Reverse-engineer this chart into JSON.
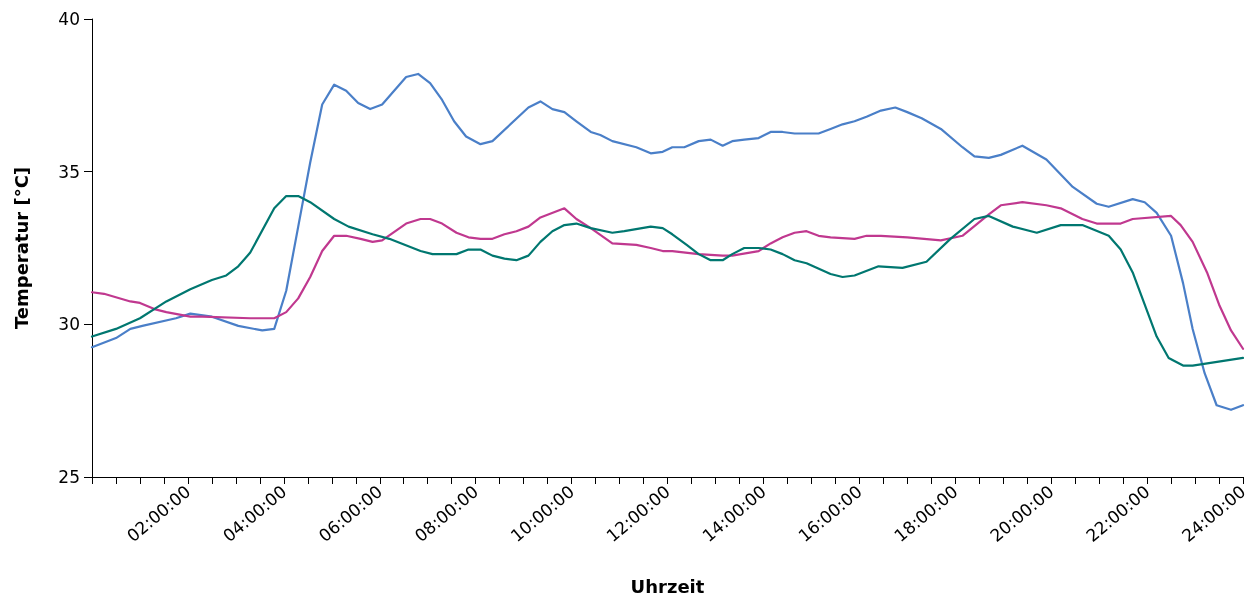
{
  "chart_data": {
    "type": "line",
    "xlabel": "Uhrzeit",
    "ylabel": "Temperatur [°C]",
    "xlim": [
      0,
      24
    ],
    "ylim": [
      25,
      40
    ],
    "yticks": [
      25,
      30,
      35,
      40
    ],
    "xticks": [
      {
        "value": 0,
        "label": null
      },
      {
        "value": 0.5,
        "label": null
      },
      {
        "value": 1,
        "label": null
      },
      {
        "value": 1.5,
        "label": null
      },
      {
        "value": 2,
        "label": "02:00:00"
      },
      {
        "value": 2.5,
        "label": null
      },
      {
        "value": 3,
        "label": null
      },
      {
        "value": 3.5,
        "label": null
      },
      {
        "value": 4,
        "label": "04:00:00"
      },
      {
        "value": 4.5,
        "label": null
      },
      {
        "value": 5,
        "label": null
      },
      {
        "value": 5.5,
        "label": null
      },
      {
        "value": 6,
        "label": "06:00:00"
      },
      {
        "value": 6.5,
        "label": null
      },
      {
        "value": 7,
        "label": null
      },
      {
        "value": 7.5,
        "label": null
      },
      {
        "value": 8,
        "label": "08:00:00"
      },
      {
        "value": 8.5,
        "label": null
      },
      {
        "value": 9,
        "label": null
      },
      {
        "value": 9.5,
        "label": null
      },
      {
        "value": 10,
        "label": "10:00:00"
      },
      {
        "value": 10.5,
        "label": null
      },
      {
        "value": 11,
        "label": null
      },
      {
        "value": 11.5,
        "label": null
      },
      {
        "value": 12,
        "label": "12:00:00"
      },
      {
        "value": 12.5,
        "label": null
      },
      {
        "value": 13,
        "label": null
      },
      {
        "value": 13.5,
        "label": null
      },
      {
        "value": 14,
        "label": "14:00:00"
      },
      {
        "value": 14.5,
        "label": null
      },
      {
        "value": 15,
        "label": null
      },
      {
        "value": 15.5,
        "label": null
      },
      {
        "value": 16,
        "label": "16:00:00"
      },
      {
        "value": 16.5,
        "label": null
      },
      {
        "value": 17,
        "label": null
      },
      {
        "value": 17.5,
        "label": null
      },
      {
        "value": 18,
        "label": "18:00:00"
      },
      {
        "value": 18.5,
        "label": null
      },
      {
        "value": 19,
        "label": null
      },
      {
        "value": 19.5,
        "label": null
      },
      {
        "value": 20,
        "label": "20:00:00"
      },
      {
        "value": 20.5,
        "label": null
      },
      {
        "value": 21,
        "label": null
      },
      {
        "value": 21.5,
        "label": null
      },
      {
        "value": 22,
        "label": "22:00:00"
      },
      {
        "value": 22.5,
        "label": null
      },
      {
        "value": 23,
        "label": null
      },
      {
        "value": 23.5,
        "label": null
      },
      {
        "value": 24,
        "label": "24:00:00"
      }
    ],
    "grid": false,
    "marker": "none",
    "line_style": "solid",
    "series": [
      {
        "color": "#4a7fc8",
        "x": [
          0,
          0.5,
          0.8,
          1.05,
          1.75,
          2.05,
          2.5,
          3.05,
          3.55,
          3.8,
          4.05,
          4.3,
          4.55,
          4.8,
          5.05,
          5.3,
          5.55,
          5.8,
          6.05,
          6.55,
          6.8,
          7.05,
          7.3,
          7.55,
          7.8,
          8.1,
          8.35,
          9.1,
          9.35,
          9.6,
          9.85,
          10.1,
          10.4,
          10.6,
          10.85,
          11.35,
          11.65,
          11.9,
          12.1,
          12.35,
          12.65,
          12.9,
          13.15,
          13.35,
          13.6,
          13.9,
          14.15,
          14.4,
          14.65,
          14.9,
          15.15,
          15.4,
          15.65,
          15.9,
          16.15,
          16.45,
          16.75,
          17,
          17.3,
          17.7,
          18.15,
          18.4,
          18.7,
          18.95,
          19.4,
          19.9,
          20.45,
          20.95,
          21.2,
          21.7,
          21.95,
          22.2,
          22.5,
          22.75,
          22.95,
          23.2,
          23.45,
          23.75,
          24
        ],
        "values": [
          29.25,
          29.55,
          29.85,
          29.95,
          30.2,
          30.35,
          30.25,
          29.95,
          29.8,
          29.85,
          31.1,
          33.2,
          35.3,
          37.2,
          37.85,
          37.65,
          37.25,
          37.05,
          37.2,
          38.1,
          38.2,
          37.9,
          37.35,
          36.65,
          36.15,
          35.9,
          36.0,
          37.1,
          37.3,
          37.05,
          36.95,
          36.65,
          36.3,
          36.2,
          36.0,
          35.8,
          35.6,
          35.65,
          35.8,
          35.8,
          36.0,
          36.05,
          35.85,
          36.0,
          36.05,
          36.1,
          36.3,
          36.3,
          36.25,
          36.25,
          36.25,
          36.4,
          36.55,
          36.65,
          36.8,
          37.0,
          37.1,
          36.95,
          36.75,
          36.4,
          35.8,
          35.5,
          35.45,
          35.55,
          35.85,
          35.4,
          34.5,
          33.95,
          33.85,
          34.1,
          34.0,
          33.65,
          32.9,
          31.35,
          29.85,
          28.4,
          27.35,
          27.2,
          27.35
        ]
      },
      {
        "color": "#c0388f",
        "x": [
          0,
          0.25,
          0.8,
          1,
          1.3,
          1.55,
          2.05,
          2.3,
          3.3,
          3.8,
          4.05,
          4.3,
          4.55,
          4.8,
          5.05,
          5.3,
          5.6,
          5.85,
          6.05,
          6.55,
          6.85,
          7.05,
          7.3,
          7.6,
          7.85,
          8.1,
          8.35,
          8.6,
          8.85,
          9.1,
          9.35,
          9.85,
          10.1,
          10.4,
          10.85,
          11.35,
          11.65,
          11.9,
          12.1,
          12.65,
          13.15,
          13.35,
          13.9,
          14.15,
          14.4,
          14.65,
          14.9,
          15.15,
          15.4,
          15.9,
          16.15,
          16.45,
          17,
          17.7,
          18.15,
          18.7,
          18.95,
          19.4,
          19.9,
          20.2,
          20.65,
          20.95,
          21.45,
          21.7,
          22.5,
          22.7,
          22.95,
          23.25,
          23.5,
          23.75,
          24
        ],
        "values": [
          31.05,
          31.0,
          30.75,
          30.7,
          30.5,
          30.4,
          30.25,
          30.25,
          30.2,
          30.2,
          30.4,
          30.85,
          31.55,
          32.4,
          32.9,
          32.9,
          32.8,
          32.7,
          32.75,
          33.3,
          33.45,
          33.45,
          33.3,
          33.0,
          32.85,
          32.8,
          32.8,
          32.95,
          33.05,
          33.2,
          33.5,
          33.8,
          33.45,
          33.15,
          32.65,
          32.6,
          32.5,
          32.4,
          32.4,
          32.3,
          32.25,
          32.25,
          32.4,
          32.65,
          32.85,
          33.0,
          33.05,
          32.9,
          32.85,
          32.8,
          32.9,
          32.9,
          32.85,
          32.75,
          32.9,
          33.6,
          33.9,
          34.0,
          33.9,
          33.8,
          33.45,
          33.3,
          33.3,
          33.45,
          33.55,
          33.25,
          32.7,
          31.7,
          30.65,
          29.8,
          29.2
        ]
      },
      {
        "color": "#007770",
        "x": [
          0,
          0.5,
          1,
          1.55,
          2.05,
          2.5,
          2.8,
          3.05,
          3.3,
          3.8,
          4.05,
          4.3,
          4.55,
          5.05,
          5.35,
          5.85,
          6.2,
          6.85,
          7.1,
          7.6,
          7.85,
          8.1,
          8.35,
          8.6,
          8.85,
          9.1,
          9.35,
          9.6,
          9.85,
          10.1,
          10.4,
          10.85,
          11.1,
          11.65,
          11.9,
          12.1,
          12.4,
          12.65,
          12.9,
          13.15,
          13.35,
          13.6,
          13.9,
          14.15,
          14.4,
          14.65,
          14.9,
          15.4,
          15.65,
          15.9,
          16.4,
          16.9,
          17.4,
          17.9,
          18.4,
          18.7,
          19.2,
          19.7,
          20.2,
          20.65,
          21.2,
          21.45,
          21.7,
          22.2,
          22.45,
          22.75,
          22.95,
          24
        ],
        "values": [
          29.6,
          29.85,
          30.2,
          30.75,
          31.15,
          31.45,
          31.6,
          31.9,
          32.35,
          33.8,
          34.2,
          34.2,
          34.0,
          33.45,
          33.2,
          32.95,
          32.8,
          32.4,
          32.3,
          32.3,
          32.45,
          32.45,
          32.25,
          32.15,
          32.1,
          32.25,
          32.7,
          33.05,
          33.25,
          33.3,
          33.15,
          33.0,
          33.05,
          33.2,
          33.15,
          32.95,
          32.6,
          32.3,
          32.1,
          32.1,
          32.3,
          32.5,
          32.5,
          32.45,
          32.3,
          32.1,
          32.0,
          31.65,
          31.55,
          31.6,
          31.9,
          31.85,
          32.05,
          32.8,
          33.45,
          33.55,
          33.2,
          33.0,
          33.25,
          33.25,
          32.9,
          32.45,
          31.7,
          29.6,
          28.9,
          28.65,
          28.65,
          28.9
        ]
      }
    ]
  }
}
